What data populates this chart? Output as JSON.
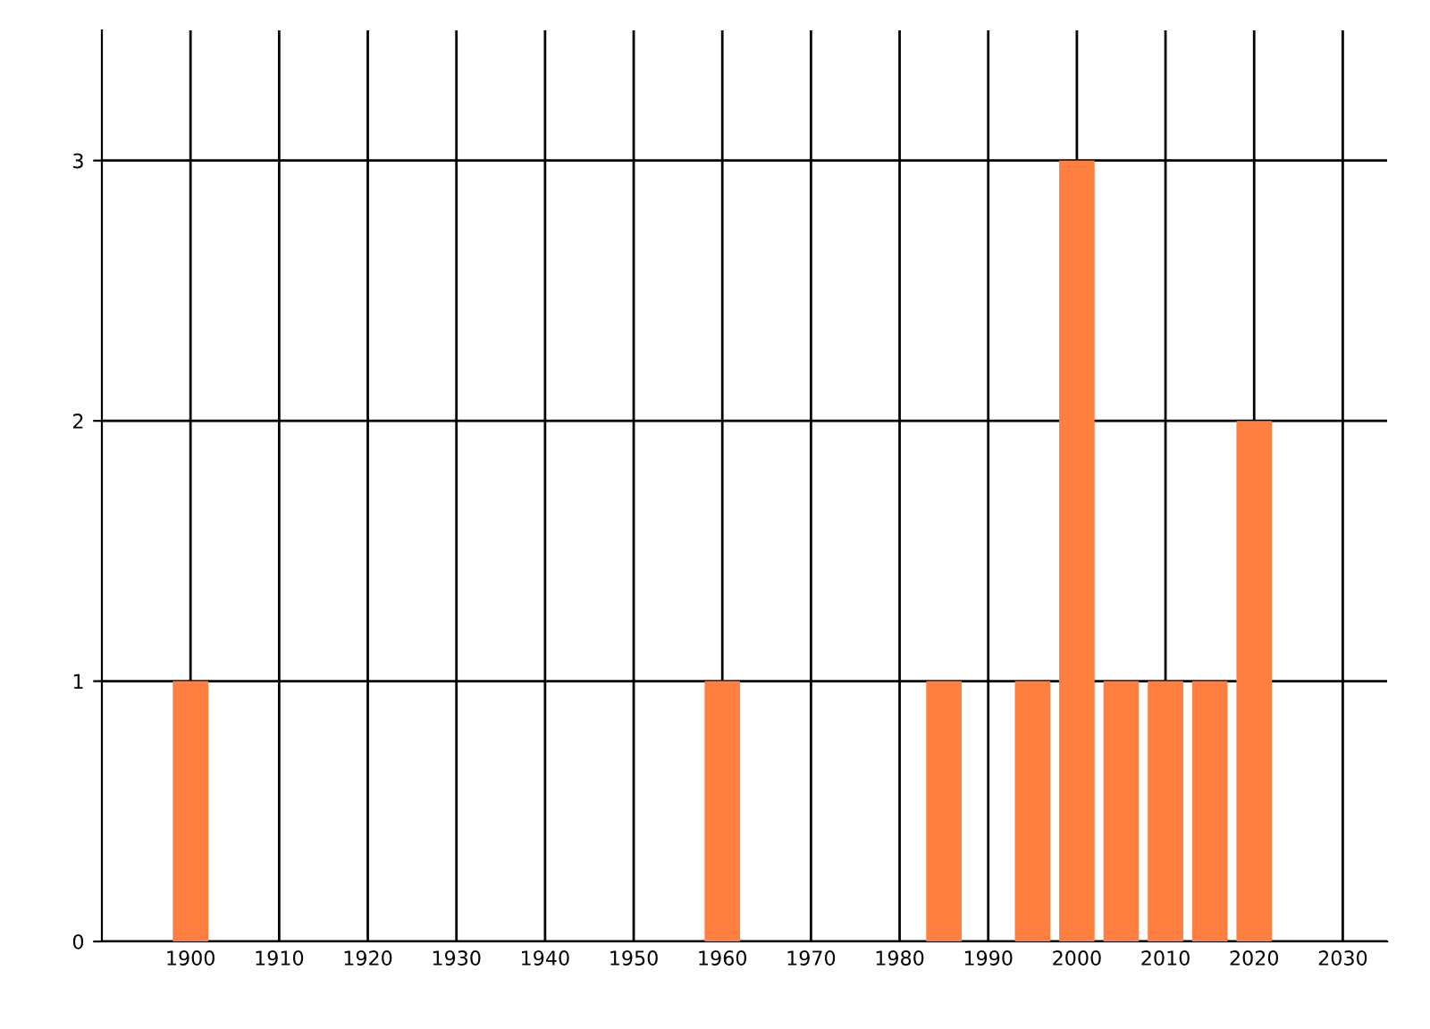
{
  "chart_data": {
    "type": "bar",
    "x": [
      1900,
      1960,
      1985,
      1995,
      2000,
      2005,
      2010,
      2015,
      2020
    ],
    "values": [
      1,
      1,
      1,
      1,
      3,
      1,
      1,
      1,
      2
    ],
    "color": "#ff7f40",
    "xlim": [
      1890,
      2035
    ],
    "xticks": [
      1900,
      1910,
      1920,
      1930,
      1940,
      1950,
      1960,
      1970,
      1980,
      1990,
      2000,
      2010,
      2020,
      2030
    ],
    "ylim": [
      0,
      3.5
    ],
    "yticks": [
      0,
      1,
      2,
      3
    ],
    "grid": true
  }
}
